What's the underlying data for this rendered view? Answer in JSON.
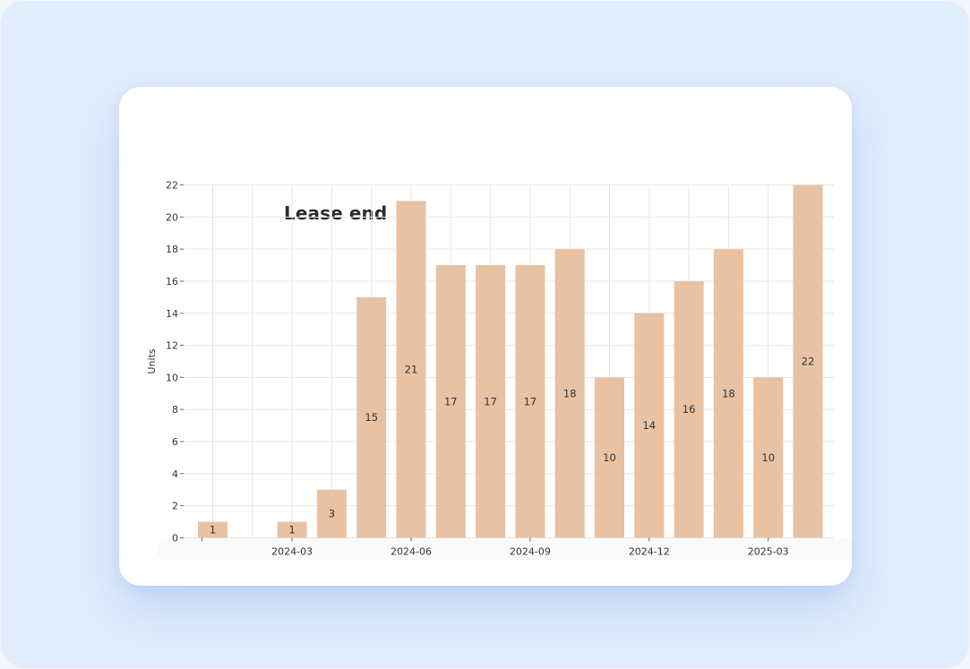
{
  "card": {
    "title": "Lease end"
  },
  "colors": {
    "bar": "#e8c2a3",
    "background": "#e1edfc",
    "card": "#ffffff"
  },
  "chart_data": {
    "type": "bar",
    "title": "Lease end",
    "xlabel": "",
    "ylabel": "Units",
    "ylim": [
      0,
      22
    ],
    "y_ticks": [
      0,
      2,
      4,
      6,
      8,
      10,
      12,
      14,
      16,
      18,
      20,
      22
    ],
    "x_tick_labels": [
      "2024-03",
      "2024-06",
      "2024-09",
      "2024-12",
      "2025-03"
    ],
    "grid": true,
    "categories": [
      "2024-01",
      "2024-02",
      "2024-03",
      "2024-04",
      "2024-05",
      "2024-06",
      "2024-07",
      "2024-08",
      "2024-09",
      "2024-10",
      "2024-11",
      "2024-12",
      "2025-01",
      "2025-02",
      "2025-03",
      "2025-04"
    ],
    "values": [
      1,
      0,
      1,
      3,
      15,
      21,
      17,
      17,
      17,
      18,
      10,
      14,
      16,
      18,
      10,
      22
    ],
    "data_labels": [
      "1",
      "",
      "1",
      "3",
      "15",
      "21",
      "17",
      "17",
      "17",
      "18",
      "10",
      "14",
      "16",
      "18",
      "10",
      "22"
    ]
  }
}
